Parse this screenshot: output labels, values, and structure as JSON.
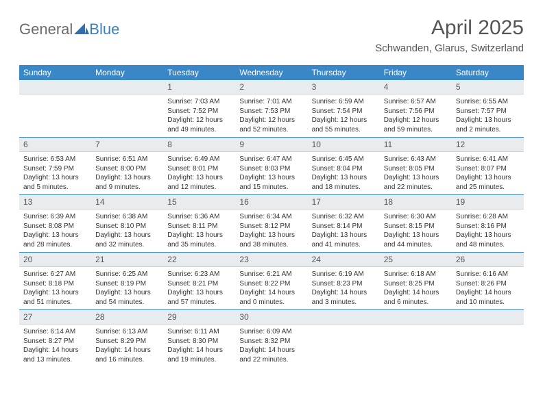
{
  "brand": {
    "text_general": "General",
    "text_blue": "Blue",
    "logo_color": "#2f6fae"
  },
  "title": "April 2025",
  "location": "Schwanden, Glarus, Switzerland",
  "colors": {
    "header_bg": "#3a87c8",
    "header_text": "#ffffff",
    "daynum_bg": "#e9ecef",
    "row_border": "#3a87c8"
  },
  "weekdays": [
    "Sunday",
    "Monday",
    "Tuesday",
    "Wednesday",
    "Thursday",
    "Friday",
    "Saturday"
  ],
  "weeks": [
    [
      {
        "blank": true
      },
      {
        "blank": true
      },
      {
        "day": "1",
        "sunrise": "Sunrise: 7:03 AM",
        "sunset": "Sunset: 7:52 PM",
        "daylight": "Daylight: 12 hours and 49 minutes."
      },
      {
        "day": "2",
        "sunrise": "Sunrise: 7:01 AM",
        "sunset": "Sunset: 7:53 PM",
        "daylight": "Daylight: 12 hours and 52 minutes."
      },
      {
        "day": "3",
        "sunrise": "Sunrise: 6:59 AM",
        "sunset": "Sunset: 7:54 PM",
        "daylight": "Daylight: 12 hours and 55 minutes."
      },
      {
        "day": "4",
        "sunrise": "Sunrise: 6:57 AM",
        "sunset": "Sunset: 7:56 PM",
        "daylight": "Daylight: 12 hours and 59 minutes."
      },
      {
        "day": "5",
        "sunrise": "Sunrise: 6:55 AM",
        "sunset": "Sunset: 7:57 PM",
        "daylight": "Daylight: 13 hours and 2 minutes."
      }
    ],
    [
      {
        "day": "6",
        "sunrise": "Sunrise: 6:53 AM",
        "sunset": "Sunset: 7:59 PM",
        "daylight": "Daylight: 13 hours and 5 minutes."
      },
      {
        "day": "7",
        "sunrise": "Sunrise: 6:51 AM",
        "sunset": "Sunset: 8:00 PM",
        "daylight": "Daylight: 13 hours and 9 minutes."
      },
      {
        "day": "8",
        "sunrise": "Sunrise: 6:49 AM",
        "sunset": "Sunset: 8:01 PM",
        "daylight": "Daylight: 13 hours and 12 minutes."
      },
      {
        "day": "9",
        "sunrise": "Sunrise: 6:47 AM",
        "sunset": "Sunset: 8:03 PM",
        "daylight": "Daylight: 13 hours and 15 minutes."
      },
      {
        "day": "10",
        "sunrise": "Sunrise: 6:45 AM",
        "sunset": "Sunset: 8:04 PM",
        "daylight": "Daylight: 13 hours and 18 minutes."
      },
      {
        "day": "11",
        "sunrise": "Sunrise: 6:43 AM",
        "sunset": "Sunset: 8:05 PM",
        "daylight": "Daylight: 13 hours and 22 minutes."
      },
      {
        "day": "12",
        "sunrise": "Sunrise: 6:41 AM",
        "sunset": "Sunset: 8:07 PM",
        "daylight": "Daylight: 13 hours and 25 minutes."
      }
    ],
    [
      {
        "day": "13",
        "sunrise": "Sunrise: 6:39 AM",
        "sunset": "Sunset: 8:08 PM",
        "daylight": "Daylight: 13 hours and 28 minutes."
      },
      {
        "day": "14",
        "sunrise": "Sunrise: 6:38 AM",
        "sunset": "Sunset: 8:10 PM",
        "daylight": "Daylight: 13 hours and 32 minutes."
      },
      {
        "day": "15",
        "sunrise": "Sunrise: 6:36 AM",
        "sunset": "Sunset: 8:11 PM",
        "daylight": "Daylight: 13 hours and 35 minutes."
      },
      {
        "day": "16",
        "sunrise": "Sunrise: 6:34 AM",
        "sunset": "Sunset: 8:12 PM",
        "daylight": "Daylight: 13 hours and 38 minutes."
      },
      {
        "day": "17",
        "sunrise": "Sunrise: 6:32 AM",
        "sunset": "Sunset: 8:14 PM",
        "daylight": "Daylight: 13 hours and 41 minutes."
      },
      {
        "day": "18",
        "sunrise": "Sunrise: 6:30 AM",
        "sunset": "Sunset: 8:15 PM",
        "daylight": "Daylight: 13 hours and 44 minutes."
      },
      {
        "day": "19",
        "sunrise": "Sunrise: 6:28 AM",
        "sunset": "Sunset: 8:16 PM",
        "daylight": "Daylight: 13 hours and 48 minutes."
      }
    ],
    [
      {
        "day": "20",
        "sunrise": "Sunrise: 6:27 AM",
        "sunset": "Sunset: 8:18 PM",
        "daylight": "Daylight: 13 hours and 51 minutes."
      },
      {
        "day": "21",
        "sunrise": "Sunrise: 6:25 AM",
        "sunset": "Sunset: 8:19 PM",
        "daylight": "Daylight: 13 hours and 54 minutes."
      },
      {
        "day": "22",
        "sunrise": "Sunrise: 6:23 AM",
        "sunset": "Sunset: 8:21 PM",
        "daylight": "Daylight: 13 hours and 57 minutes."
      },
      {
        "day": "23",
        "sunrise": "Sunrise: 6:21 AM",
        "sunset": "Sunset: 8:22 PM",
        "daylight": "Daylight: 14 hours and 0 minutes."
      },
      {
        "day": "24",
        "sunrise": "Sunrise: 6:19 AM",
        "sunset": "Sunset: 8:23 PM",
        "daylight": "Daylight: 14 hours and 3 minutes."
      },
      {
        "day": "25",
        "sunrise": "Sunrise: 6:18 AM",
        "sunset": "Sunset: 8:25 PM",
        "daylight": "Daylight: 14 hours and 6 minutes."
      },
      {
        "day": "26",
        "sunrise": "Sunrise: 6:16 AM",
        "sunset": "Sunset: 8:26 PM",
        "daylight": "Daylight: 14 hours and 10 minutes."
      }
    ],
    [
      {
        "day": "27",
        "sunrise": "Sunrise: 6:14 AM",
        "sunset": "Sunset: 8:27 PM",
        "daylight": "Daylight: 14 hours and 13 minutes."
      },
      {
        "day": "28",
        "sunrise": "Sunrise: 6:13 AM",
        "sunset": "Sunset: 8:29 PM",
        "daylight": "Daylight: 14 hours and 16 minutes."
      },
      {
        "day": "29",
        "sunrise": "Sunrise: 6:11 AM",
        "sunset": "Sunset: 8:30 PM",
        "daylight": "Daylight: 14 hours and 19 minutes."
      },
      {
        "day": "30",
        "sunrise": "Sunrise: 6:09 AM",
        "sunset": "Sunset: 8:32 PM",
        "daylight": "Daylight: 14 hours and 22 minutes."
      },
      {
        "blank": true
      },
      {
        "blank": true
      },
      {
        "blank": true
      }
    ]
  ]
}
